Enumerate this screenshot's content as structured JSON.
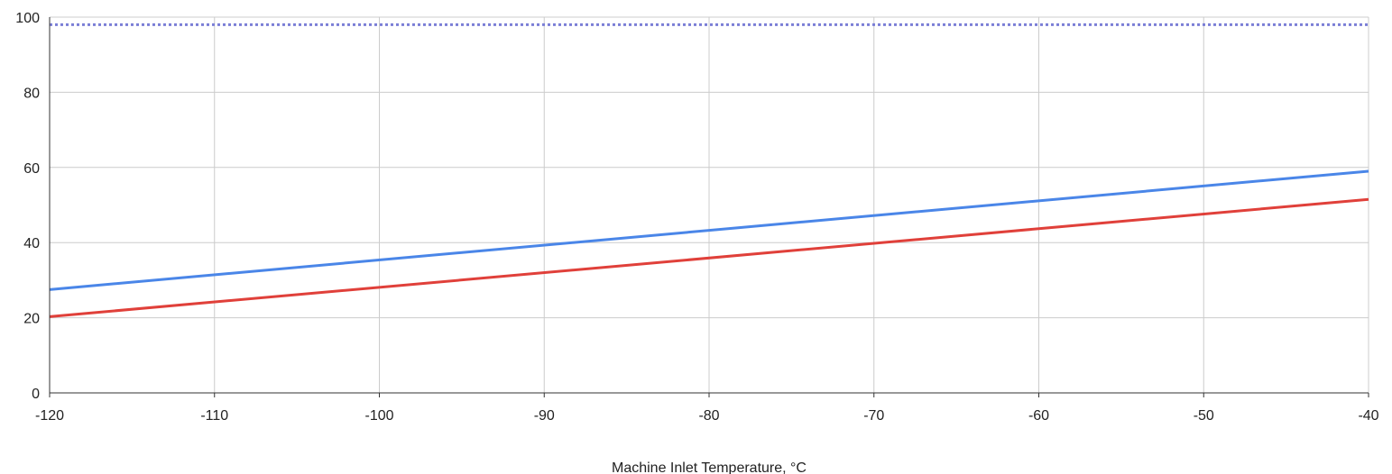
{
  "chart_data": {
    "type": "line",
    "title": "",
    "xlabel": "Machine Inlet Temperature, °C",
    "ylabel": "",
    "xlim": [
      -120,
      -40
    ],
    "ylim": [
      0,
      100
    ],
    "xticks": [
      -120,
      -110,
      -100,
      -90,
      -80,
      -70,
      -60,
      -50,
      -40
    ],
    "yticks": [
      0,
      20,
      40,
      60,
      80,
      100
    ],
    "grid": true,
    "legend": "none",
    "series": [
      {
        "color": "#7b7fd6",
        "style": "dotted",
        "x": [
          -120,
          -40
        ],
        "y": [
          98,
          98
        ]
      },
      {
        "color": "#4a86e8",
        "style": "solid",
        "x": [
          -120,
          -40
        ],
        "y": [
          27.5,
          59
        ]
      },
      {
        "color": "#e0403a",
        "style": "solid",
        "x": [
          -120,
          -40
        ],
        "y": [
          20.3,
          51.5
        ]
      }
    ]
  }
}
